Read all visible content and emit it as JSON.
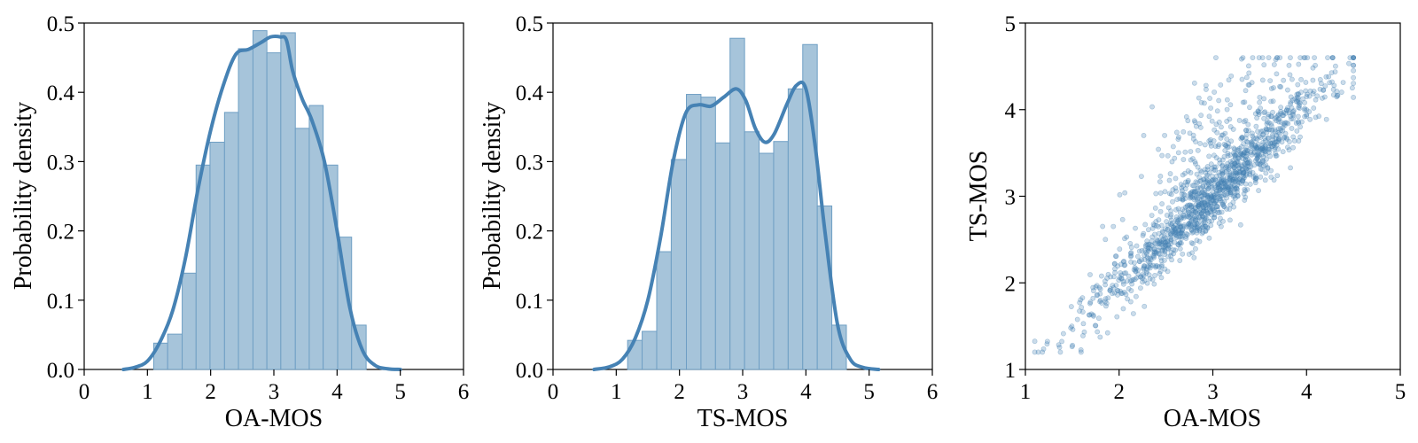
{
  "chart_data": [
    {
      "type": "histogram+kde",
      "xlabel": "OA-MOS",
      "ylabel": "Probability density",
      "xlim": [
        0,
        6
      ],
      "ylim": [
        0,
        0.5
      ],
      "xticks": [
        "0",
        "1",
        "2",
        "3",
        "4",
        "5",
        "6"
      ],
      "yticks": [
        "0.0",
        "0.1",
        "0.2",
        "0.3",
        "0.4",
        "0.5"
      ],
      "bar_color": "#a6c4da",
      "line_color": "#4682b4",
      "bins": [
        {
          "x0": 1.1,
          "x1": 1.32,
          "density": 0.038
        },
        {
          "x0": 1.32,
          "x1": 1.55,
          "density": 0.051
        },
        {
          "x0": 1.55,
          "x1": 1.77,
          "density": 0.139
        },
        {
          "x0": 1.77,
          "x1": 1.99,
          "density": 0.295
        },
        {
          "x0": 1.99,
          "x1": 2.22,
          "density": 0.328
        },
        {
          "x0": 2.22,
          "x1": 2.44,
          "density": 0.371
        },
        {
          "x0": 2.44,
          "x1": 2.67,
          "density": 0.463
        },
        {
          "x0": 2.67,
          "x1": 2.89,
          "density": 0.489
        },
        {
          "x0": 2.89,
          "x1": 3.11,
          "density": 0.457
        },
        {
          "x0": 3.11,
          "x1": 3.34,
          "density": 0.486
        },
        {
          "x0": 3.34,
          "x1": 3.56,
          "density": 0.348
        },
        {
          "x0": 3.56,
          "x1": 3.78,
          "density": 0.381
        },
        {
          "x0": 3.78,
          "x1": 4.01,
          "density": 0.295
        },
        {
          "x0": 4.01,
          "x1": 4.23,
          "density": 0.191
        },
        {
          "x0": 4.23,
          "x1": 4.46,
          "density": 0.064
        }
      ],
      "kde": {
        "x": [
          0.62,
          0.8,
          1.0,
          1.2,
          1.4,
          1.6,
          1.8,
          2.0,
          2.2,
          2.4,
          2.6,
          2.8,
          2.95,
          3.1,
          3.2,
          3.3,
          3.45,
          3.6,
          3.8,
          4.0,
          4.2,
          4.4,
          4.6,
          4.8,
          5.0
        ],
        "y": [
          0.0,
          0.003,
          0.012,
          0.04,
          0.085,
          0.16,
          0.26,
          0.345,
          0.41,
          0.455,
          0.462,
          0.472,
          0.48,
          0.48,
          0.475,
          0.43,
          0.39,
          0.36,
          0.3,
          0.2,
          0.09,
          0.028,
          0.006,
          0.001,
          0.0
        ]
      }
    },
    {
      "type": "histogram+kde",
      "xlabel": "TS-MOS",
      "ylabel": "Probability density",
      "xlim": [
        0,
        6
      ],
      "ylim": [
        0,
        0.5
      ],
      "xticks": [
        "0",
        "1",
        "2",
        "3",
        "4",
        "5",
        "6"
      ],
      "yticks": [
        "0.0",
        "0.1",
        "0.2",
        "0.3",
        "0.4",
        "0.5"
      ],
      "bar_color": "#a6c4da",
      "line_color": "#4682b4",
      "bins": [
        {
          "x0": 1.18,
          "x1": 1.41,
          "density": 0.042
        },
        {
          "x0": 1.41,
          "x1": 1.64,
          "density": 0.055
        },
        {
          "x0": 1.64,
          "x1": 1.87,
          "density": 0.17
        },
        {
          "x0": 1.87,
          "x1": 2.11,
          "density": 0.303
        },
        {
          "x0": 2.11,
          "x1": 2.34,
          "density": 0.397
        },
        {
          "x0": 2.34,
          "x1": 2.57,
          "density": 0.393
        },
        {
          "x0": 2.57,
          "x1": 2.8,
          "density": 0.327
        },
        {
          "x0": 2.8,
          "x1": 3.03,
          "density": 0.478
        },
        {
          "x0": 3.03,
          "x1": 3.26,
          "density": 0.343
        },
        {
          "x0": 3.26,
          "x1": 3.49,
          "density": 0.312
        },
        {
          "x0": 3.49,
          "x1": 3.72,
          "density": 0.329
        },
        {
          "x0": 3.72,
          "x1": 3.95,
          "density": 0.405
        },
        {
          "x0": 3.95,
          "x1": 4.18,
          "density": 0.469
        },
        {
          "x0": 4.18,
          "x1": 4.41,
          "density": 0.236
        },
        {
          "x0": 4.41,
          "x1": 4.64,
          "density": 0.064
        }
      ],
      "kde": {
        "x": [
          0.65,
          0.9,
          1.1,
          1.3,
          1.5,
          1.7,
          1.9,
          2.1,
          2.3,
          2.5,
          2.7,
          2.9,
          3.05,
          3.2,
          3.35,
          3.5,
          3.7,
          3.85,
          4.0,
          4.15,
          4.3,
          4.5,
          4.7,
          4.9,
          5.15
        ],
        "y": [
          0.0,
          0.004,
          0.015,
          0.045,
          0.1,
          0.19,
          0.3,
          0.37,
          0.382,
          0.38,
          0.393,
          0.405,
          0.388,
          0.348,
          0.328,
          0.34,
          0.383,
          0.41,
          0.405,
          0.32,
          0.2,
          0.065,
          0.015,
          0.003,
          0.0
        ]
      }
    },
    {
      "type": "scatter",
      "xlabel": "OA-MOS",
      "ylabel": "TS-MOS",
      "xlim": [
        1,
        5
      ],
      "ylim": [
        1,
        5
      ],
      "xticks": [
        "1",
        "2",
        "3",
        "4",
        "5"
      ],
      "yticks": [
        "1",
        "2",
        "3",
        "4",
        "5"
      ],
      "point_color": "#4682b4",
      "x_range_of_points": [
        1.1,
        4.5
      ],
      "y_range_of_points": [
        1.2,
        4.6
      ],
      "approx_point_count": 1400,
      "trend": "strong positive correlation, roughly y ≈ x"
    }
  ]
}
